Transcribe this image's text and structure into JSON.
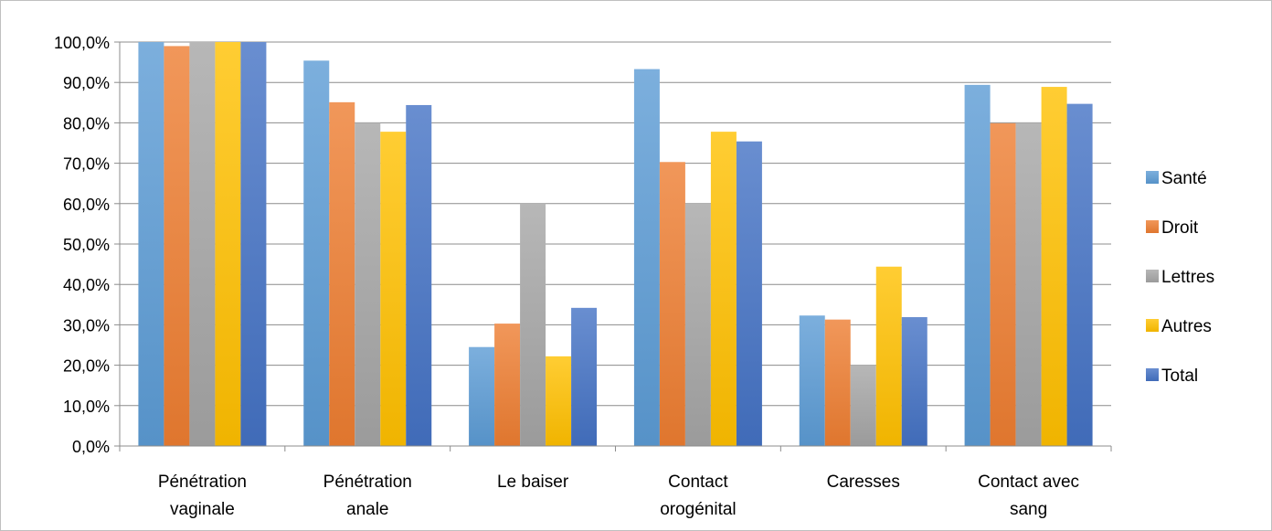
{
  "chart_data": {
    "type": "bar",
    "categories": [
      [
        "Pénétration",
        "vaginale"
      ],
      [
        "Pénétration",
        "anale"
      ],
      [
        "Le baiser"
      ],
      [
        "Contact",
        "orogénital"
      ],
      [
        "Caresses"
      ],
      [
        "Contact avec",
        "sang"
      ]
    ],
    "series": [
      {
        "name": "Santé",
        "color": "#5b9bd5",
        "values": [
          100.0,
          95.4,
          24.5,
          93.3,
          32.3,
          89.4
        ]
      },
      {
        "name": "Droit",
        "color": "#ed7d31",
        "values": [
          99.0,
          85.1,
          30.3,
          70.3,
          31.3,
          79.9
        ]
      },
      {
        "name": "Lettres",
        "color": "#a5a5a5",
        "values": [
          100.0,
          80.0,
          60.0,
          60.0,
          20.0,
          80.0
        ]
      },
      {
        "name": "Autres",
        "color": "#ffc000",
        "values": [
          100.0,
          77.8,
          22.2,
          77.8,
          44.4,
          88.9
        ]
      },
      {
        "name": "Total",
        "color": "#4472c4",
        "values": [
          100.0,
          84.4,
          34.2,
          75.4,
          31.9,
          84.7
        ]
      }
    ],
    "ylim": [
      0,
      100
    ],
    "yticks": [
      "0,0%",
      "10,0%",
      "20,0%",
      "30,0%",
      "40,0%",
      "50,0%",
      "60,0%",
      "70,0%",
      "80,0%",
      "90,0%",
      "100,0%"
    ],
    "grid": true,
    "legend": "right"
  }
}
